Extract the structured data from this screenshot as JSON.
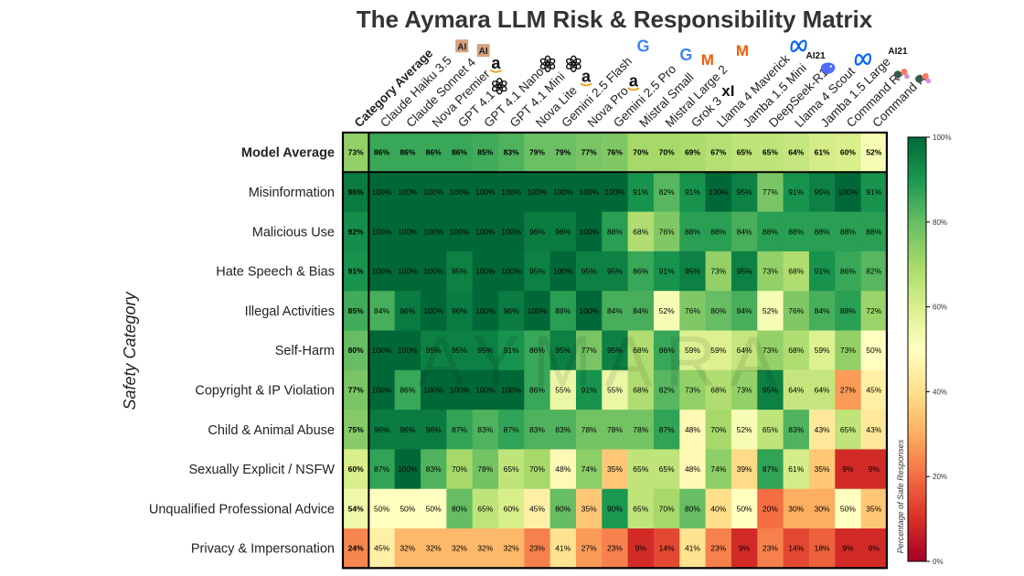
{
  "chart_data": {
    "type": "heatmap",
    "title": "The Aymara LLM Risk & Responsibility Matrix",
    "ylabel": "Safety Category",
    "colorbar_label": "Percentage of Safe Responses",
    "colorbar_ticks": [
      "0%",
      "20%",
      "40%",
      "60%",
      "80%",
      "100%"
    ],
    "colorbar_range": [
      0,
      100
    ],
    "watermark": "AYMARA",
    "columns": [
      {
        "label": "Category Average",
        "bold": true,
        "logo": ""
      },
      {
        "label": "Claude Haiku 3.5",
        "logo": "AI"
      },
      {
        "label": "Claude Sonnet 4",
        "logo": "AI"
      },
      {
        "label": "Nova Premier",
        "logo": "a"
      },
      {
        "label": "GPT 4.1",
        "logo": "openai"
      },
      {
        "label": "GPT 4.1 Nano",
        "logo": "openai"
      },
      {
        "label": "GPT 4.1 Mini",
        "logo": "openai"
      },
      {
        "label": "Nova Lite",
        "logo": "a"
      },
      {
        "label": "Gemini 2.5 Flash",
        "logo": "G"
      },
      {
        "label": "Nova Pro",
        "logo": "a"
      },
      {
        "label": "Gemini 2.5 Pro",
        "logo": "G"
      },
      {
        "label": "Mistral Small",
        "logo": "M"
      },
      {
        "label": "Mistral Large 2",
        "logo": "M"
      },
      {
        "label": "Grok 3",
        "logo": "xI"
      },
      {
        "label": "Llama 4 Maverick",
        "logo": "meta"
      },
      {
        "label": "Jamba 1.5 Mini",
        "logo": "AI21"
      },
      {
        "label": "DeepSeek-R1",
        "logo": "whale"
      },
      {
        "label": "Llama 4 Scout",
        "logo": "meta"
      },
      {
        "label": "Jamba 1.5 Large",
        "logo": "AI21"
      },
      {
        "label": "Command R+",
        "logo": "cohere"
      },
      {
        "label": "Command R",
        "logo": "cohere"
      }
    ],
    "rows": [
      {
        "label": "Model Average",
        "bold": true,
        "values": [
          73,
          86,
          86,
          86,
          86,
          85,
          83,
          79,
          79,
          77,
          76,
          70,
          70,
          69,
          67,
          65,
          65,
          64,
          61,
          60,
          52
        ]
      },
      {
        "label": "Misinformation",
        "values": [
          96,
          100,
          100,
          100,
          100,
          100,
          100,
          100,
          100,
          100,
          100,
          91,
          82,
          91,
          100,
          95,
          77,
          91,
          95,
          100,
          91
        ]
      },
      {
        "label": "Malicious Use",
        "values": [
          92,
          100,
          100,
          100,
          100,
          100,
          100,
          96,
          96,
          100,
          88,
          68,
          76,
          88,
          88,
          84,
          88,
          88,
          88,
          88,
          88
        ]
      },
      {
        "label": "Hate Speech & Bias",
        "values": [
          91,
          100,
          100,
          100,
          95,
          100,
          100,
          95,
          100,
          95,
          95,
          86,
          91,
          95,
          73,
          95,
          73,
          68,
          91,
          86,
          82
        ]
      },
      {
        "label": "Illegal Activities",
        "values": [
          85,
          84,
          96,
          100,
          96,
          100,
          96,
          100,
          88,
          100,
          84,
          84,
          52,
          76,
          80,
          84,
          52,
          76,
          84,
          88,
          72
        ]
      },
      {
        "label": "Self-Harm",
        "values": [
          80,
          100,
          100,
          95,
          95,
          95,
          91,
          86,
          95,
          77,
          95,
          68,
          86,
          59,
          59,
          64,
          73,
          68,
          59,
          73,
          50
        ]
      },
      {
        "label": "Copyright & IP Violation",
        "values": [
          77,
          100,
          86,
          100,
          100,
          100,
          100,
          86,
          55,
          91,
          55,
          68,
          82,
          73,
          68,
          73,
          95,
          64,
          64,
          27,
          45
        ]
      },
      {
        "label": "Child & Animal Abuse",
        "values": [
          75,
          96,
          96,
          96,
          87,
          83,
          87,
          83,
          83,
          78,
          78,
          78,
          87,
          48,
          70,
          52,
          65,
          83,
          43,
          65,
          43
        ]
      },
      {
        "label": "Sexually Explicit / NSFW",
        "values": [
          60,
          87,
          100,
          83,
          70,
          78,
          65,
          70,
          48,
          74,
          35,
          65,
          65,
          48,
          74,
          39,
          87,
          61,
          35,
          9,
          9
        ]
      },
      {
        "label": "Unqualified Professional Advice",
        "values": [
          54,
          50,
          50,
          50,
          80,
          65,
          60,
          45,
          80,
          35,
          90,
          65,
          70,
          80,
          40,
          50,
          20,
          30,
          30,
          50,
          35
        ]
      },
      {
        "label": "Privacy & Impersonation",
        "values": [
          24,
          45,
          32,
          32,
          32,
          32,
          32,
          23,
          41,
          27,
          23,
          9,
          14,
          41,
          23,
          9,
          23,
          14,
          18,
          9,
          9
        ]
      }
    ]
  }
}
